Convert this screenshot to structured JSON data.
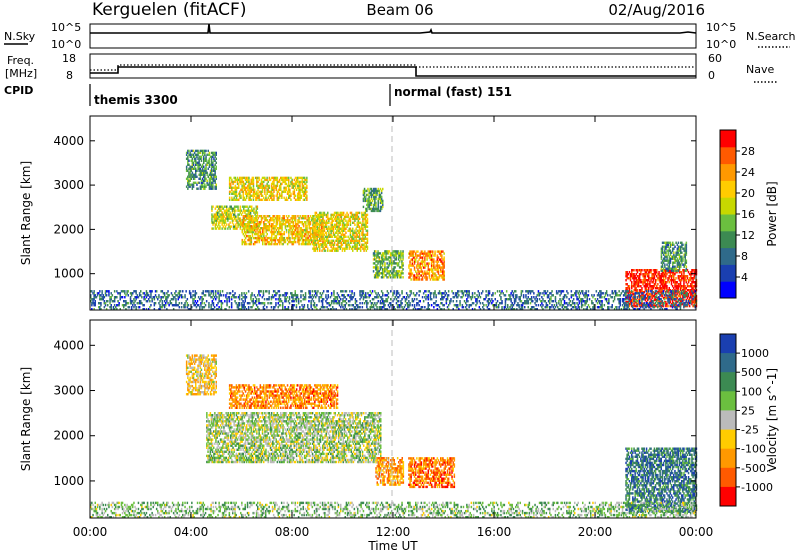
{
  "header": {
    "station": "Kerguelen (fitACF)",
    "beam": "Beam 06",
    "date": "02/Aug/2016"
  },
  "panels": {
    "nsky": {
      "left_label": "N.Sky",
      "right_label": "N.Search",
      "left_ticks": [
        "10^5",
        "10^0"
      ],
      "right_ticks": [
        "10^5",
        "10^0"
      ]
    },
    "freq": {
      "left_label_1": "Freq.",
      "left_label_2": "[MHz]",
      "right_label": "Nave",
      "left_ticks": [
        "18",
        "8"
      ],
      "right_ticks": [
        "60",
        "0"
      ]
    },
    "cpid": {
      "label": "CPID",
      "mode_1": "themis 3300",
      "mode_2": "normal (fast) 151"
    },
    "power_panel": {
      "ylabel": "Slant Range [km]"
    },
    "velocity_panel": {
      "ylabel": "Slant Range [km]"
    }
  },
  "chart_data": [
    {
      "type": "heatmap",
      "name": "power",
      "xlabel": "Time UT",
      "ylabel": "Slant Range [km]",
      "x_ticks": [
        "00:00",
        "04:00",
        "08:00",
        "12:00",
        "16:00",
        "20:00",
        "00:00"
      ],
      "xlim_hours": [
        0,
        24
      ],
      "y_ticks": [
        1000,
        2000,
        3000,
        4000
      ],
      "ylim": [
        180,
        4560
      ],
      "colorbar": {
        "label": "Power [dB]",
        "ticks": [
          "4",
          "8",
          "12",
          "16",
          "20",
          "24",
          "28"
        ],
        "colors": [
          "#0000ff",
          "#1a3fb0",
          "#2f6a8a",
          "#3c8a52",
          "#6bbf3f",
          "#c7d800",
          "#ffcc00",
          "#ff9900",
          "#ff5a00",
          "#ff0000"
        ]
      },
      "regions": [
        {
          "t0": 3.8,
          "t1": 5.0,
          "r0": 2900,
          "r1": 3800,
          "level": 0.35
        },
        {
          "t0": 4.8,
          "t1": 6.6,
          "r0": 2000,
          "r1": 2500,
          "level": 0.55
        },
        {
          "t0": 5.5,
          "t1": 8.6,
          "r0": 2650,
          "r1": 3150,
          "level": 0.6
        },
        {
          "t0": 6.0,
          "t1": 9.2,
          "r0": 1650,
          "r1": 2300,
          "level": 0.65
        },
        {
          "t0": 8.8,
          "t1": 11.0,
          "r0": 1500,
          "r1": 2400,
          "level": 0.6
        },
        {
          "t0": 10.8,
          "t1": 11.6,
          "r0": 2400,
          "r1": 2900,
          "level": 0.4
        },
        {
          "t0": 11.2,
          "t1": 12.4,
          "r0": 900,
          "r1": 1500,
          "level": 0.45
        },
        {
          "t0": 12.6,
          "t1": 14.0,
          "r0": 850,
          "r1": 1500,
          "level": 0.75
        },
        {
          "t0": 21.2,
          "t1": 24.0,
          "r0": 250,
          "r1": 1100,
          "level": 0.95
        },
        {
          "t0": 22.6,
          "t1": 23.6,
          "r0": 1050,
          "r1": 1700,
          "level": 0.35
        },
        {
          "t0": 0.0,
          "t1": 24.0,
          "r0": 180,
          "r1": 600,
          "level": 0.25
        }
      ]
    },
    {
      "type": "heatmap",
      "name": "velocity",
      "xlabel": "Time UT",
      "ylabel": "Slant Range [km]",
      "x_ticks": [
        "00:00",
        "04:00",
        "08:00",
        "12:00",
        "16:00",
        "20:00",
        "00:00"
      ],
      "xlim_hours": [
        0,
        24
      ],
      "y_ticks": [
        1000,
        2000,
        3000,
        4000
      ],
      "ylim": [
        180,
        4560
      ],
      "colorbar": {
        "label": "Velocity [m s^-1]",
        "ticks": [
          "1000",
          "500",
          "100",
          "25",
          "-25",
          "-100",
          "-500",
          "-1000"
        ],
        "colors": [
          "#1a3fb0",
          "#2f6a8a",
          "#3c8a52",
          "#6bbf3f",
          "#bbbbbb",
          "#ffcc00",
          "#ff9900",
          "#ff5a00",
          "#ff0000"
        ]
      },
      "regions": [
        {
          "t0": 3.8,
          "t1": 5.0,
          "r0": 2900,
          "r1": 3800,
          "level": 0.6
        },
        {
          "t0": 4.6,
          "t1": 11.5,
          "r0": 1400,
          "r1": 2500,
          "level": 0.45
        },
        {
          "t0": 5.5,
          "t1": 9.8,
          "r0": 2600,
          "r1": 3100,
          "level": 0.75
        },
        {
          "t0": 11.3,
          "t1": 12.4,
          "r0": 900,
          "r1": 1500,
          "level": 0.7
        },
        {
          "t0": 12.6,
          "t1": 14.4,
          "r0": 850,
          "r1": 1500,
          "level": 0.8
        },
        {
          "t0": 21.2,
          "t1": 24.0,
          "r0": 300,
          "r1": 1700,
          "level": 0.2
        },
        {
          "t0": 0.0,
          "t1": 24.0,
          "r0": 180,
          "r1": 500,
          "level": 0.4
        }
      ]
    }
  ]
}
